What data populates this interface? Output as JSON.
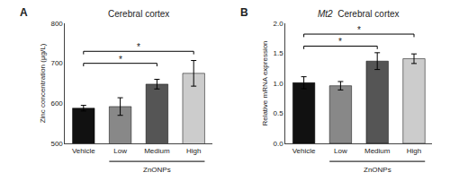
{
  "chart_data": [
    {
      "type": "bar",
      "title": "Cerebral cortex",
      "panel_label": "A",
      "categories": [
        "Vehicle",
        "Low",
        "Medium",
        "High"
      ],
      "values": [
        588,
        592,
        648,
        675
      ],
      "errors": [
        7,
        22,
        12,
        32
      ],
      "colors": [
        "#111111",
        "#888888",
        "#555555",
        "#cccccc"
      ],
      "ylabel": "Zinc concentration (μg/L)",
      "ylim": [
        500,
        800
      ],
      "yticks": [
        500,
        600,
        700,
        800
      ],
      "grid": false,
      "significance": [
        {
          "from": "Vehicle",
          "to": "Medium",
          "y": 700,
          "label": "*"
        },
        {
          "from": "Vehicle",
          "to": "High",
          "y": 730,
          "label": "*"
        }
      ],
      "group_bracket": {
        "label": "ZnONPs",
        "from": "Low",
        "to": "High"
      }
    },
    {
      "type": "bar",
      "title": "Mt2  Cerebral cortex",
      "italic": "Mt2",
      "panel_label": "B",
      "categories": [
        "Vehicle",
        "Low",
        "Medium",
        "High"
      ],
      "values": [
        1.01,
        0.96,
        1.37,
        1.41
      ],
      "errors": [
        0.1,
        0.07,
        0.14,
        0.08
      ],
      "colors": [
        "#111111",
        "#888888",
        "#555555",
        "#cccccc"
      ],
      "ylabel": "Relative mRNA expression",
      "ylim": [
        0,
        2.0
      ],
      "yticks": [
        {
          "value": 0,
          "label": "0.0"
        },
        0.5,
        {
          "value": 1,
          "label": "1.0"
        },
        1.5,
        {
          "value": 2,
          "label": "2.0"
        }
      ],
      "grid": false,
      "significance": [
        {
          "from": "Vehicle",
          "to": "Medium",
          "y": 1.62,
          "label": "*"
        },
        {
          "from": "Vehicle",
          "to": "High",
          "y": 1.82,
          "label": "*"
        }
      ],
      "group_bracket": {
        "label": "ZnONPs",
        "from": "Low",
        "to": "High"
      }
    }
  ]
}
